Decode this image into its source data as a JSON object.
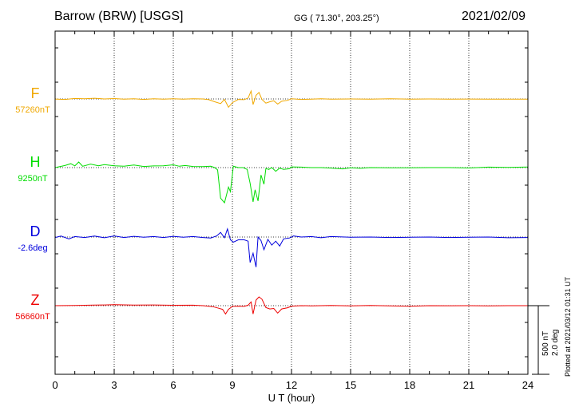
{
  "header": {
    "station": "Barrow (BRW)  [USGS]",
    "coords": "GG ( 71.30°, 203.25°)",
    "date": "2021/02/09"
  },
  "side": {
    "plotted": "Plotted at 2021/03/12 01:31  UT",
    "scale_nT": "500 nT",
    "scale_deg": "2.0 deg"
  },
  "chart_data": {
    "type": "line",
    "xlabel": "U T (hour)",
    "xlim": [
      0,
      24
    ],
    "xticks": [
      "0",
      "3",
      "6",
      "9",
      "12",
      "15",
      "18",
      "21",
      "24"
    ],
    "grid": true,
    "series": [
      {
        "name": "F",
        "baseline_label": "57260nT",
        "color": "#f0a800",
        "unit": "nT",
        "baseline": 57260,
        "points": [
          [
            0,
            57259
          ],
          [
            0.5,
            57255
          ],
          [
            1,
            57265
          ],
          [
            1.5,
            57262
          ],
          [
            2,
            57268
          ],
          [
            2.5,
            57260
          ],
          [
            3,
            57264
          ],
          [
            3.5,
            57257
          ],
          [
            4,
            57262
          ],
          [
            4.5,
            57255
          ],
          [
            5,
            57262
          ],
          [
            5.5,
            57258
          ],
          [
            6,
            57262
          ],
          [
            6.5,
            57258
          ],
          [
            7,
            57263
          ],
          [
            7.5,
            57260
          ],
          [
            7.8,
            57252
          ],
          [
            8.1,
            57230
          ],
          [
            8.4,
            57210
          ],
          [
            8.6,
            57255
          ],
          [
            8.8,
            57170
          ],
          [
            9,
            57220
          ],
          [
            9.3,
            57255
          ],
          [
            9.6,
            57252
          ],
          [
            9.8,
            57270
          ],
          [
            9.95,
            57345
          ],
          [
            10.05,
            57200
          ],
          [
            10.2,
            57300
          ],
          [
            10.35,
            57330
          ],
          [
            10.5,
            57255
          ],
          [
            10.7,
            57215
          ],
          [
            10.9,
            57230
          ],
          [
            11.1,
            57240
          ],
          [
            11.3,
            57205
          ],
          [
            11.5,
            57235
          ],
          [
            11.8,
            57245
          ],
          [
            12,
            57262
          ],
          [
            12.5,
            57255
          ],
          [
            13,
            57258
          ],
          [
            13.5,
            57262
          ],
          [
            14,
            57258
          ],
          [
            15,
            57260
          ],
          [
            16,
            57258
          ],
          [
            17,
            57262
          ],
          [
            18,
            57258
          ],
          [
            19,
            57260
          ],
          [
            20,
            57258
          ],
          [
            21,
            57259
          ],
          [
            22,
            57257
          ],
          [
            23,
            57258
          ],
          [
            24,
            57258
          ]
        ]
      },
      {
        "name": "H",
        "baseline_label": "9250nT",
        "color": "#00dd00",
        "unit": "nT",
        "baseline": 9250,
        "points": [
          [
            0,
            9250
          ],
          [
            0.5,
            9272
          ],
          [
            0.8,
            9292
          ],
          [
            1,
            9268
          ],
          [
            1.2,
            9310
          ],
          [
            1.4,
            9265
          ],
          [
            1.8,
            9288
          ],
          [
            2.2,
            9270
          ],
          [
            2.5,
            9282
          ],
          [
            3,
            9270
          ],
          [
            3.5,
            9265
          ],
          [
            4,
            9278
          ],
          [
            4.5,
            9262
          ],
          [
            5,
            9268
          ],
          [
            5.5,
            9270
          ],
          [
            6,
            9280
          ],
          [
            6.3,
            9265
          ],
          [
            6.6,
            9272
          ],
          [
            7,
            9262
          ],
          [
            7.5,
            9260
          ],
          [
            7.9,
            9265
          ],
          [
            8.1,
            9250
          ],
          [
            8.25,
            9225
          ],
          [
            8.4,
            8920
          ],
          [
            8.6,
            8870
          ],
          [
            8.8,
            9040
          ],
          [
            8.9,
            8990
          ],
          [
            9.05,
            9265
          ],
          [
            9.3,
            9250
          ],
          [
            9.55,
            9250
          ],
          [
            9.75,
            9230
          ],
          [
            9.9,
            9080
          ],
          [
            10.05,
            8880
          ],
          [
            10.15,
            9010
          ],
          [
            10.3,
            8890
          ],
          [
            10.45,
            9170
          ],
          [
            10.6,
            9070
          ],
          [
            10.7,
            9240
          ],
          [
            10.85,
            9230
          ],
          [
            11,
            9250
          ],
          [
            11.2,
            9210
          ],
          [
            11.4,
            9245
          ],
          [
            11.6,
            9230
          ],
          [
            11.9,
            9238
          ],
          [
            12,
            9258
          ],
          [
            12.5,
            9255
          ],
          [
            13,
            9250
          ],
          [
            13.5,
            9250
          ],
          [
            14,
            9245
          ],
          [
            14.6,
            9236
          ],
          [
            15,
            9248
          ],
          [
            15.5,
            9242
          ],
          [
            16,
            9250
          ],
          [
            17,
            9248
          ],
          [
            18,
            9248
          ],
          [
            19,
            9250
          ],
          [
            20,
            9250
          ],
          [
            21,
            9246
          ],
          [
            22,
            9255
          ],
          [
            23,
            9252
          ],
          [
            24,
            9256
          ]
        ]
      },
      {
        "name": "D",
        "baseline_label": "-2.6deg",
        "color": "#0000dd",
        "unit": "deg",
        "baseline": -2.6,
        "points": [
          [
            0,
            -2.62
          ],
          [
            0.3,
            -2.56
          ],
          [
            0.7,
            -2.68
          ],
          [
            1,
            -2.58
          ],
          [
            1.5,
            -2.62
          ],
          [
            2,
            -2.56
          ],
          [
            2.5,
            -2.63
          ],
          [
            3,
            -2.55
          ],
          [
            3.5,
            -2.62
          ],
          [
            4,
            -2.57
          ],
          [
            4.5,
            -2.61
          ],
          [
            5,
            -2.58
          ],
          [
            5.5,
            -2.62
          ],
          [
            6,
            -2.57
          ],
          [
            6.5,
            -2.61
          ],
          [
            7,
            -2.58
          ],
          [
            7.5,
            -2.62
          ],
          [
            7.9,
            -2.64
          ],
          [
            8.2,
            -2.55
          ],
          [
            8.4,
            -2.4
          ],
          [
            8.6,
            -2.63
          ],
          [
            8.75,
            -2.25
          ],
          [
            8.9,
            -2.72
          ],
          [
            9.05,
            -2.82
          ],
          [
            9.3,
            -2.72
          ],
          [
            9.6,
            -2.72
          ],
          [
            9.8,
            -2.78
          ],
          [
            9.9,
            -3.7
          ],
          [
            10.05,
            -3.3
          ],
          [
            10.2,
            -3.9
          ],
          [
            10.3,
            -2.6
          ],
          [
            10.45,
            -2.75
          ],
          [
            10.6,
            -3.15
          ],
          [
            10.8,
            -2.7
          ],
          [
            11.0,
            -2.95
          ],
          [
            11.2,
            -2.78
          ],
          [
            11.4,
            -2.99
          ],
          [
            11.6,
            -2.68
          ],
          [
            11.9,
            -2.64
          ],
          [
            12.1,
            -2.55
          ],
          [
            12.5,
            -2.6
          ],
          [
            13,
            -2.58
          ],
          [
            13.5,
            -2.63
          ],
          [
            14,
            -2.58
          ],
          [
            15,
            -2.61
          ],
          [
            16,
            -2.6
          ],
          [
            17,
            -2.62
          ],
          [
            18,
            -2.61
          ],
          [
            19,
            -2.6
          ],
          [
            20,
            -2.62
          ],
          [
            21,
            -2.61
          ],
          [
            22,
            -2.6
          ],
          [
            23,
            -2.63
          ],
          [
            24,
            -2.62
          ]
        ]
      },
      {
        "name": "Z",
        "baseline_label": "56660nT",
        "color": "#ee0000",
        "unit": "nT",
        "baseline": 56660,
        "points": [
          [
            0,
            56660
          ],
          [
            1,
            56662
          ],
          [
            2,
            56667
          ],
          [
            2.5,
            56668
          ],
          [
            3,
            56670
          ],
          [
            4,
            56667
          ],
          [
            5,
            56668
          ],
          [
            6,
            56664
          ],
          [
            7,
            56665
          ],
          [
            7.5,
            56660
          ],
          [
            8,
            56650
          ],
          [
            8.3,
            56632
          ],
          [
            8.5,
            56620
          ],
          [
            8.65,
            56570
          ],
          [
            8.8,
            56620
          ],
          [
            9,
            56652
          ],
          [
            9.3,
            56655
          ],
          [
            9.6,
            56652
          ],
          [
            9.8,
            56665
          ],
          [
            9.95,
            56700
          ],
          [
            10.05,
            56570
          ],
          [
            10.2,
            56720
          ],
          [
            10.35,
            56755
          ],
          [
            10.5,
            56730
          ],
          [
            10.7,
            56640
          ],
          [
            10.9,
            56625
          ],
          [
            11.1,
            56630
          ],
          [
            11.3,
            56580
          ],
          [
            11.5,
            56625
          ],
          [
            11.8,
            56638
          ],
          [
            12,
            56655
          ],
          [
            12.5,
            56660
          ],
          [
            13,
            56658
          ],
          [
            14,
            56662
          ],
          [
            15,
            56658
          ],
          [
            16,
            56663
          ],
          [
            17,
            56658
          ],
          [
            18,
            56654
          ],
          [
            19,
            56660
          ],
          [
            20,
            56659
          ],
          [
            21,
            56660
          ],
          [
            22,
            56658
          ],
          [
            23,
            56660
          ],
          [
            24,
            56660
          ]
        ]
      }
    ]
  }
}
